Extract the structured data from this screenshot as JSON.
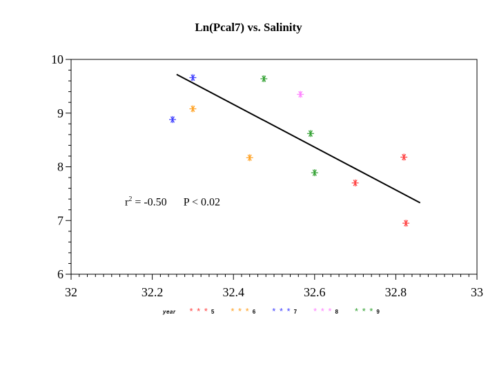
{
  "chart_data": {
    "type": "scatter",
    "title": "Ln(Pcal7) vs. Salinity",
    "xlabel": "",
    "ylabel": "",
    "xlim": [
      32,
      33
    ],
    "ylim": [
      6,
      10
    ],
    "x_ticks": [
      "32",
      "32.2",
      "32.4",
      "32.6",
      "32.8",
      "33"
    ],
    "y_ticks": [
      "6",
      "7",
      "8",
      "9",
      "10"
    ],
    "grid": false,
    "marker": "*",
    "annotation": {
      "r_text": "r",
      "r_sup": "2",
      "r_value": " = -0.50",
      "p_text": "P < 0.02"
    },
    "legend": {
      "placement": "bottom",
      "label": "year",
      "symbol": "* * *",
      "entries": [
        {
          "name": "5",
          "color": "#ff4040"
        },
        {
          "name": "6",
          "color": "#ffa020"
        },
        {
          "name": "7",
          "color": "#4040ff"
        },
        {
          "name": "8",
          "color": "#ff80ff"
        },
        {
          "name": "9",
          "color": "#30a030"
        }
      ]
    },
    "series": [
      {
        "name": "5",
        "color": "#ff4040",
        "points": [
          [
            32.7,
            7.7
          ],
          [
            32.82,
            8.18
          ],
          [
            32.825,
            6.95
          ]
        ]
      },
      {
        "name": "6",
        "color": "#ffa020",
        "points": [
          [
            32.3,
            9.08
          ],
          [
            32.44,
            8.17
          ]
        ]
      },
      {
        "name": "7",
        "color": "#4040ff",
        "points": [
          [
            32.25,
            8.88
          ],
          [
            32.3,
            9.66
          ]
        ]
      },
      {
        "name": "8",
        "color": "#ff80ff",
        "points": [
          [
            32.565,
            9.35
          ]
        ]
      },
      {
        "name": "9",
        "color": "#30a030",
        "points": [
          [
            32.475,
            9.64
          ],
          [
            32.59,
            8.62
          ],
          [
            32.6,
            7.89
          ]
        ]
      }
    ],
    "fit_line": {
      "x": [
        32.26,
        32.86
      ],
      "y": [
        9.72,
        7.33
      ],
      "color": "#000000"
    }
  }
}
